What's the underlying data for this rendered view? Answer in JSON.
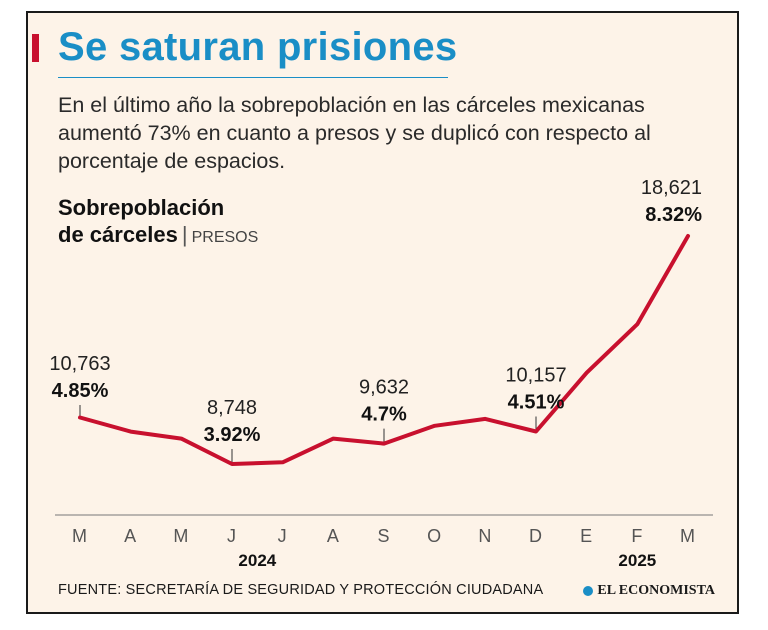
{
  "title": "Se saturan prisiones",
  "subtitle": "En el último año la sobrepoblación en las cárceles mexicanas aumentó 73% en cuanto a presos y se duplicó con respecto al porcentaje de espacios.",
  "chart_title_line1": "Sobrepoblación",
  "chart_title_line2": "de cárceles",
  "chart_title_separator": "|",
  "chart_unit": "PRESOS",
  "footer": "FUENTE: SECRETARÍA DE SEGURIDAD Y PROTECCIÓN CIUDADANA",
  "brand": "EL ECONOMISTA",
  "colors": {
    "line": "#c8102e",
    "title": "#1a8ec6",
    "background": "#fdf3e8"
  },
  "chart_data": {
    "type": "line",
    "title": "Sobrepoblación de cárceles",
    "ylabel": "Presos",
    "categories": [
      "M",
      "A",
      "M",
      "J",
      "J",
      "A",
      "S",
      "O",
      "N",
      "D",
      "E",
      "F",
      "M"
    ],
    "values": [
      10763,
      10150,
      9850,
      8748,
      8820,
      9850,
      9632,
      10400,
      10700,
      10157,
      12700,
      14800,
      18621
    ],
    "ylim": [
      6000,
      20000
    ],
    "year_labels": [
      {
        "index": 3.5,
        "label": "2024"
      },
      {
        "index": 11,
        "label": "2025"
      }
    ],
    "annotations": [
      {
        "index": 0,
        "value_label": "10,763",
        "percent_label": "4.85%"
      },
      {
        "index": 3,
        "value_label": "8,748",
        "percent_label": "3.92%"
      },
      {
        "index": 6,
        "value_label": "9,632",
        "percent_label": "4.7%"
      },
      {
        "index": 9,
        "value_label": "10,157",
        "percent_label": "4.51%"
      },
      {
        "index": 12,
        "value_label": "18,621",
        "percent_label": "8.32%"
      }
    ],
    "grid": false
  }
}
